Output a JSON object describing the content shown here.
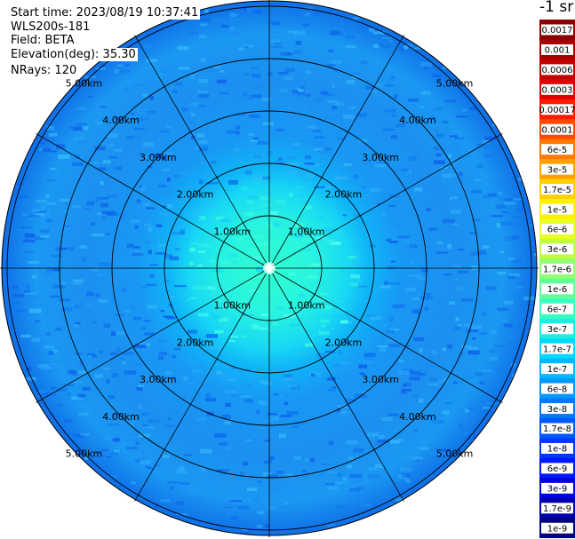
{
  "header": {
    "start_time": "Start time: 2023/08/19 10:37:41",
    "instrument": "WLS200s-181",
    "field": "Field: BETA",
    "elevation": "Elevation(deg): 35.30",
    "nrays": "NRays: 120"
  },
  "unit_label": "-1 sr",
  "range_rings": {
    "labels": [
      "1.00km",
      "2.00km",
      "3.00km",
      "4.00km",
      "5.00km"
    ]
  },
  "colorbar": {
    "bins": [
      {
        "label": "0.0017",
        "color": "#8b0000"
      },
      {
        "label": "0.001",
        "color": "#a80000"
      },
      {
        "label": "0.0006",
        "color": "#c40000"
      },
      {
        "label": "0.0003",
        "color": "#e00000"
      },
      {
        "label": "0.00017",
        "color": "#ff1a00"
      },
      {
        "label": "0.0001",
        "color": "#ff4800"
      },
      {
        "label": "6e-5",
        "color": "#ff7800"
      },
      {
        "label": "3e-5",
        "color": "#ffa000"
      },
      {
        "label": "1.7e-5",
        "color": "#ffd000"
      },
      {
        "label": "1e-5",
        "color": "#fff000"
      },
      {
        "label": "6e-6",
        "color": "#e8ff20"
      },
      {
        "label": "3e-6",
        "color": "#c0ff40"
      },
      {
        "label": "1.7e-6",
        "color": "#90ff70"
      },
      {
        "label": "1e-6",
        "color": "#60ff9a"
      },
      {
        "label": "6e-7",
        "color": "#38ffc0"
      },
      {
        "label": "3e-7",
        "color": "#18f0e0"
      },
      {
        "label": "1.7e-7",
        "color": "#00d8ff"
      },
      {
        "label": "1e-7",
        "color": "#00b8ff"
      },
      {
        "label": "6e-8",
        "color": "#0098ff"
      },
      {
        "label": "3e-8",
        "color": "#0078ff"
      },
      {
        "label": "1.7e-8",
        "color": "#0058ff"
      },
      {
        "label": "1e-8",
        "color": "#0038ff"
      },
      {
        "label": "6e-9",
        "color": "#0018ff"
      },
      {
        "label": "3e-9",
        "color": "#0000e0"
      },
      {
        "label": "1.7e-9",
        "color": "#0000b0"
      },
      {
        "label": "1e-9",
        "color": "#000080"
      }
    ]
  }
}
